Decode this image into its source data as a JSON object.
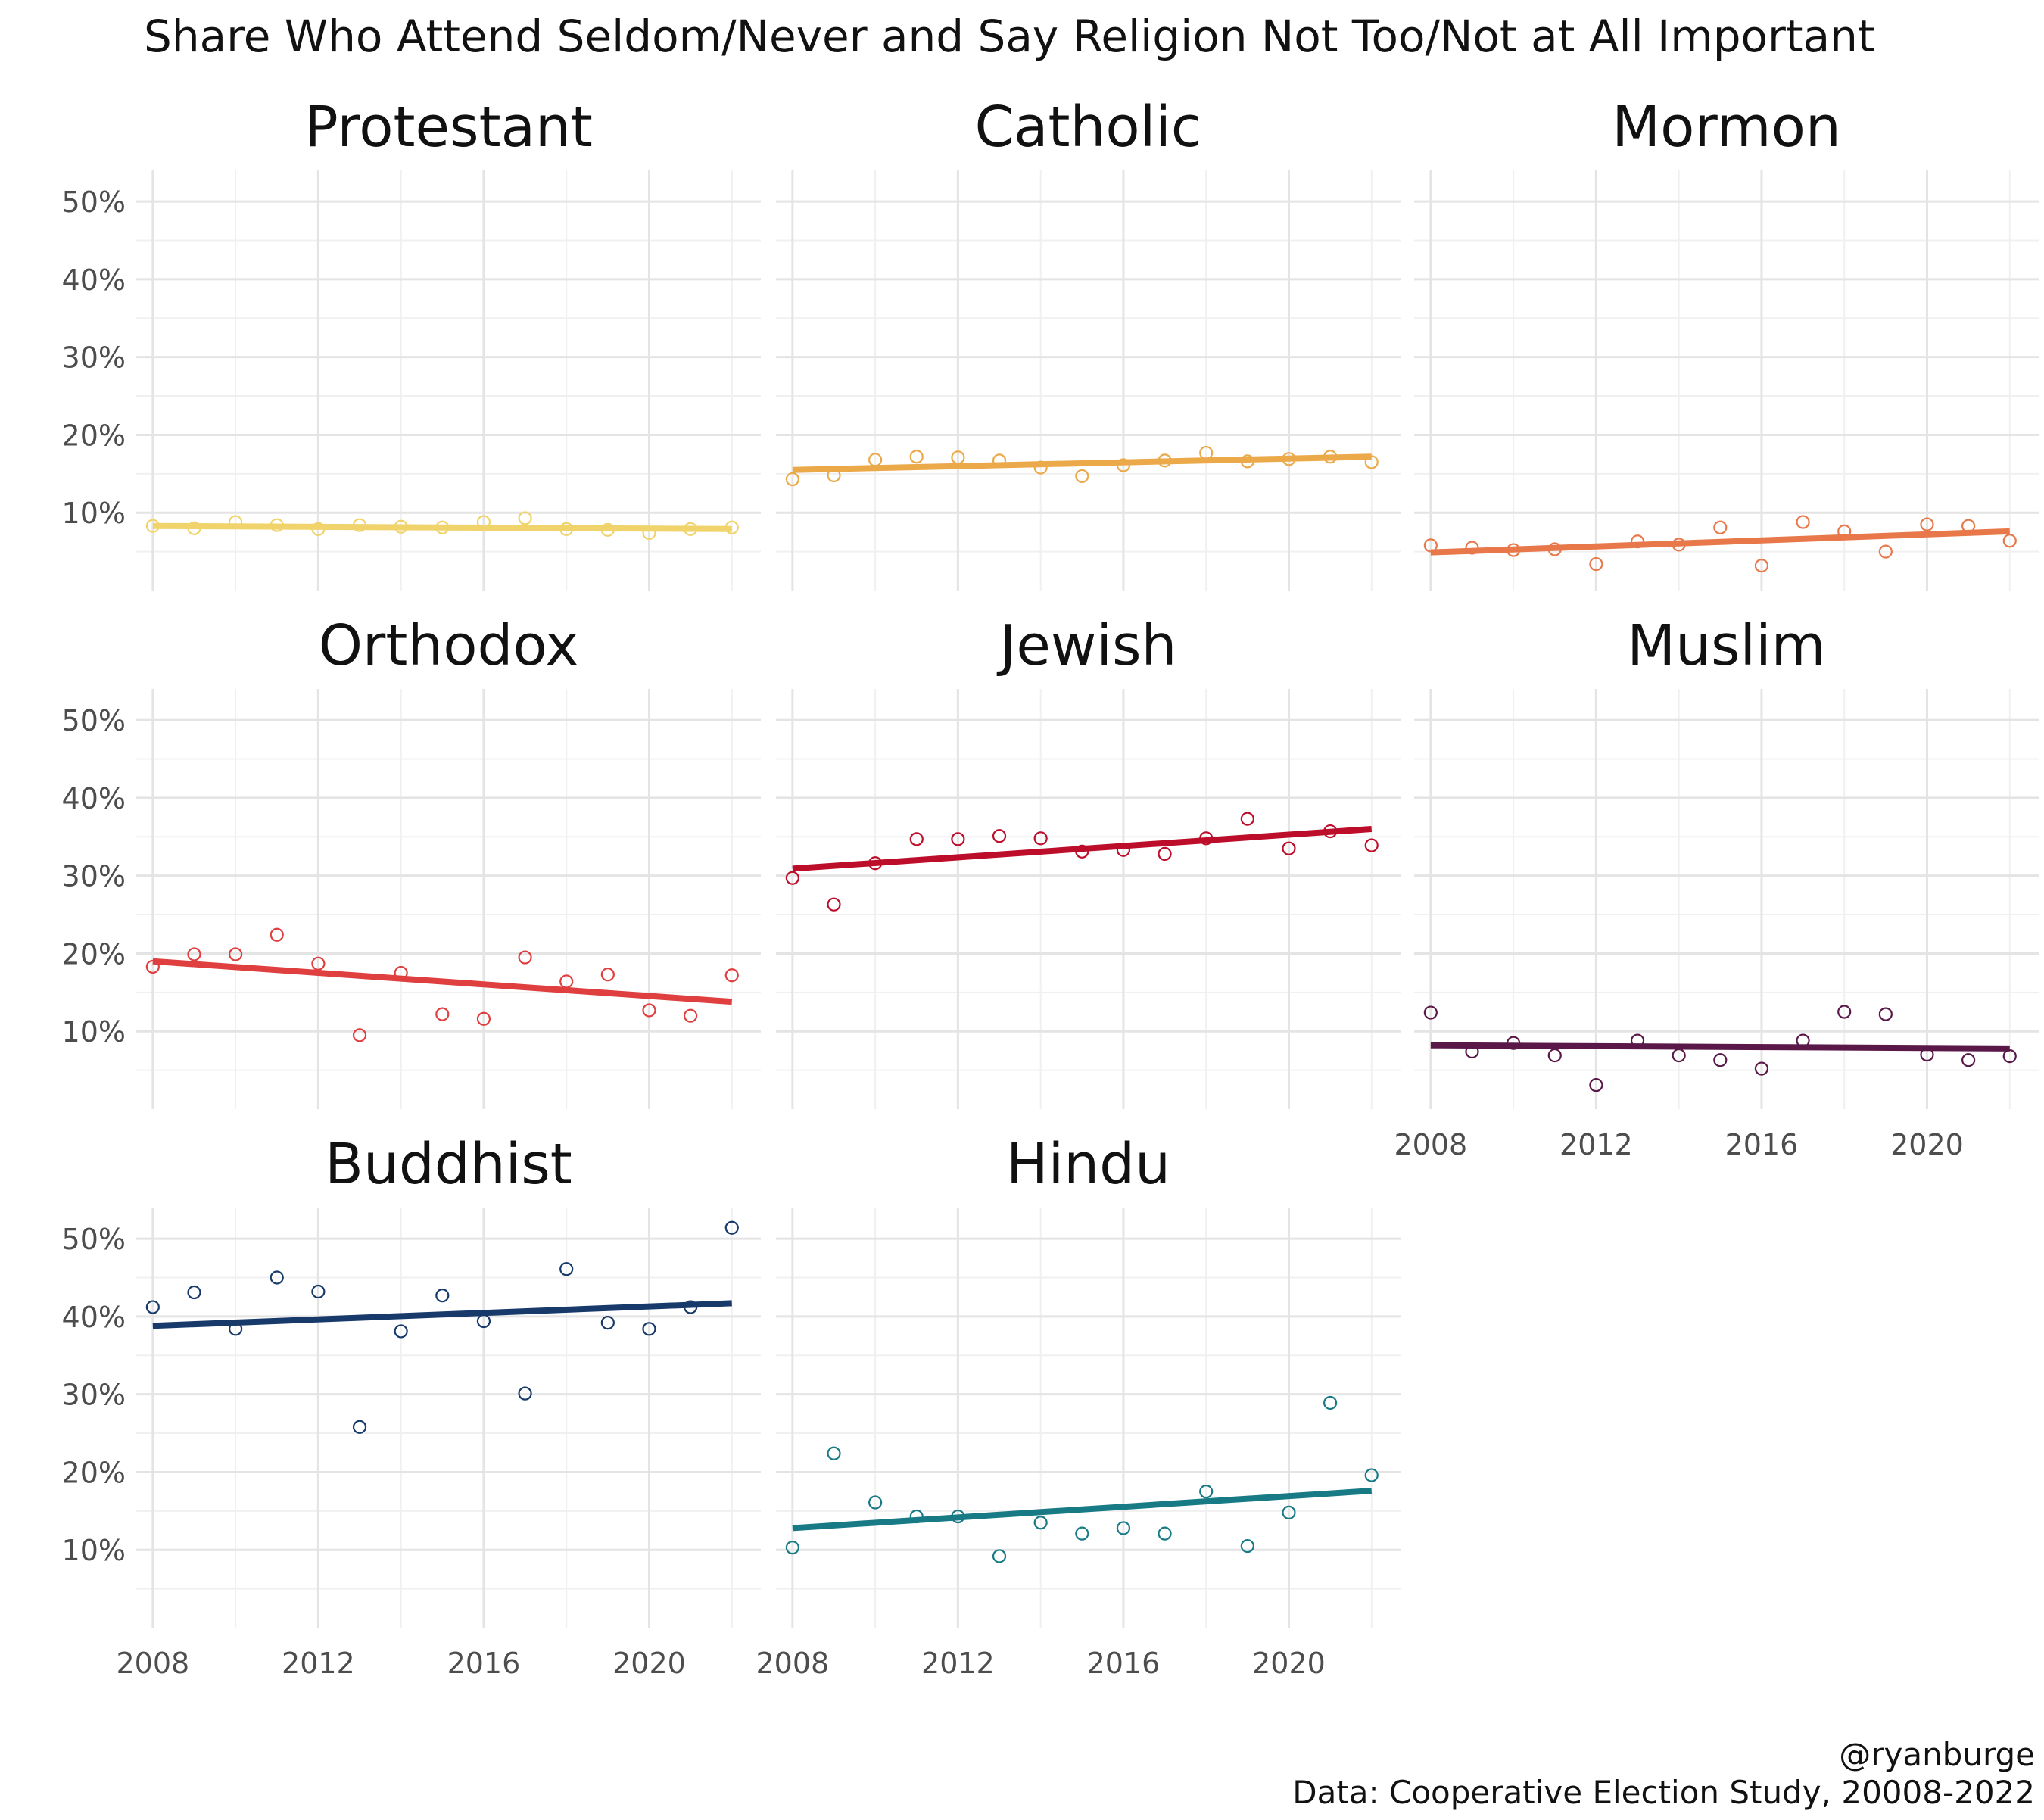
{
  "title": "Share Who Attend Seldom/Never and Say Religion Not Too/Not at All Important",
  "caption_line1": "@ryanburge",
  "caption_line2": "Data: Cooperative Election Study, 20008-2022",
  "chart_data": {
    "type": "scatter",
    "facets": 8,
    "x_ticks": [
      2008,
      2012,
      2016,
      2020
    ],
    "y_ticks": [
      10,
      20,
      30,
      40,
      50
    ],
    "y_tick_labels": [
      "10%",
      "20%",
      "30%",
      "40%",
      "50%"
    ],
    "xlim": [
      2007.6,
      2022.7
    ],
    "ylim": [
      0,
      54
    ],
    "grid": true,
    "trend_line": "linear fit",
    "x": [
      2008,
      2009,
      2010,
      2011,
      2012,
      2013,
      2014,
      2015,
      2016,
      2017,
      2018,
      2019,
      2020,
      2021,
      2022
    ],
    "series": [
      {
        "name": "Protestant",
        "color": "#F0D36A",
        "values": [
          8.3,
          8.0,
          8.8,
          8.4,
          7.9,
          8.4,
          8.2,
          8.1,
          8.8,
          9.3,
          7.9,
          7.8,
          7.4,
          7.9,
          8.1
        ],
        "trend": [
          8.3,
          7.9
        ]
      },
      {
        "name": "Catholic",
        "color": "#EBA94A",
        "values": [
          14.3,
          14.8,
          16.8,
          17.2,
          17.1,
          16.7,
          15.8,
          14.7,
          16.1,
          16.7,
          17.7,
          16.6,
          16.9,
          17.2,
          16.5
        ],
        "trend": [
          15.5,
          17.2
        ]
      },
      {
        "name": "Mormon",
        "color": "#E8784A",
        "values": [
          5.8,
          5.5,
          5.2,
          5.3,
          3.4,
          6.3,
          5.9,
          8.1,
          3.2,
          8.8,
          7.6,
          5.0,
          8.5,
          8.3,
          6.4
        ],
        "trend": [
          4.9,
          7.6
        ]
      },
      {
        "name": "Orthodox",
        "color": "#DF3F3F",
        "values": [
          18.3,
          19.9,
          19.9,
          22.4,
          18.7,
          9.5,
          17.5,
          12.2,
          11.6,
          19.5,
          16.4,
          17.3,
          12.7,
          12.0,
          17.2
        ],
        "trend": [
          19.0,
          13.8
        ]
      },
      {
        "name": "Jewish",
        "color": "#BC0D2B",
        "values": [
          29.7,
          26.3,
          31.6,
          34.7,
          34.7,
          35.1,
          34.8,
          33.1,
          33.3,
          32.8,
          34.8,
          37.3,
          33.5,
          35.7,
          33.9
        ],
        "trend": [
          30.9,
          36.0
        ]
      },
      {
        "name": "Muslim",
        "color": "#5A1848",
        "values": [
          12.4,
          7.4,
          8.5,
          6.9,
          3.1,
          8.8,
          6.9,
          6.3,
          5.2,
          8.8,
          12.5,
          12.2,
          7.0,
          6.3,
          6.8
        ],
        "trend": [
          8.2,
          7.8
        ]
      },
      {
        "name": "Buddhist",
        "color": "#173A6B",
        "values": [
          41.2,
          43.1,
          38.4,
          45.0,
          43.2,
          25.8,
          38.1,
          42.7,
          39.4,
          30.1,
          46.1,
          39.2,
          38.4,
          41.2,
          51.4
        ],
        "trend": [
          38.8,
          41.7
        ]
      },
      {
        "name": "Hindu",
        "color": "#187A85",
        "values": [
          10.3,
          22.4,
          16.1,
          14.3,
          14.3,
          9.2,
          13.5,
          12.1,
          12.8,
          12.1,
          17.5,
          10.5,
          14.8,
          28.9,
          19.6
        ],
        "trend": [
          12.8,
          17.6
        ]
      }
    ]
  }
}
